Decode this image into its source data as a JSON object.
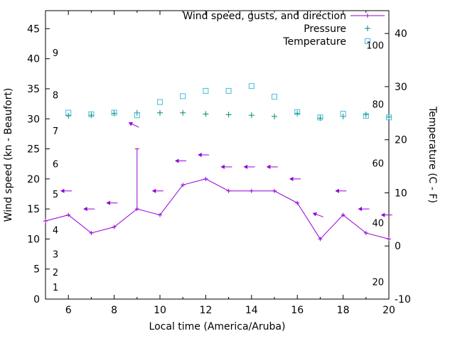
{
  "chart_data": {
    "type": "line",
    "title": "",
    "xlabel": "Local time (America/Aruba)",
    "ylabel_left": "Wind speed (kn - Beaufort)",
    "ylabel_right": "Temperature (C - F)",
    "xlim": [
      5,
      20
    ],
    "ylim_left": [
      0,
      48
    ],
    "ylim_right": [
      -10,
      44.3
    ],
    "x_ticks": [
      6,
      8,
      10,
      12,
      14,
      16,
      18,
      20
    ],
    "x_minor_ticks": [
      5,
      7,
      9,
      11,
      13,
      15,
      17,
      19
    ],
    "y_ticks_left": [
      0,
      5,
      10,
      15,
      20,
      25,
      30,
      35,
      40,
      45
    ],
    "y_ticks_right": [
      -10,
      0,
      10,
      20,
      30,
      40
    ],
    "beaufort_labels": [
      {
        "label": "1",
        "kn": 2
      },
      {
        "label": "2",
        "kn": 4.5
      },
      {
        "label": "3",
        "kn": 7.5
      },
      {
        "label": "4",
        "kn": 11.5
      },
      {
        "label": "5",
        "kn": 17.5
      },
      {
        "label": "6",
        "kn": 22.5
      },
      {
        "label": "7",
        "kn": 28
      },
      {
        "label": "8",
        "kn": 34
      },
      {
        "label": "9",
        "kn": 41
      }
    ],
    "fahrenheit_labels": [
      {
        "label": "20",
        "c": -6.7
      },
      {
        "label": "40",
        "c": 4.4
      },
      {
        "label": "60",
        "c": 15.6
      },
      {
        "label": "80",
        "c": 26.7
      },
      {
        "label": "100",
        "c": 37.8
      }
    ],
    "legend_position": "top-right",
    "series": [
      {
        "name": "Wind speed, gusts, and direction",
        "color": "#9400d3",
        "axis": "left",
        "type": "line+points+arrows",
        "x": [
          5,
          6,
          7,
          8,
          9,
          10,
          11,
          12,
          13,
          14,
          15,
          16,
          17,
          18,
          19,
          20
        ],
        "speed": [
          13,
          14,
          11,
          12,
          15,
          14,
          19,
          20,
          18,
          18,
          18,
          16,
          10,
          14,
          11,
          10
        ],
        "gust": [
          13,
          14,
          11,
          12,
          25,
          14,
          19,
          20,
          18,
          18,
          18,
          16,
          10,
          14,
          11,
          10
        ],
        "arrows": {
          "x": [
            5.9,
            6.9,
            7.9,
            8.85,
            9.9,
            10.9,
            11.9,
            12.9,
            13.9,
            14.9,
            15.9,
            16.9,
            17.9,
            18.9,
            19.9
          ],
          "y": [
            18,
            15,
            16,
            29,
            18,
            23,
            24,
            22,
            22,
            22,
            20,
            14,
            18,
            15,
            14
          ],
          "angle": [
            180,
            180,
            180,
            205,
            180,
            180,
            180,
            180,
            180,
            180,
            180,
            200,
            180,
            180,
            180
          ]
        }
      },
      {
        "name": "Pressure",
        "color": "#008878",
        "axis": "left",
        "type": "points",
        "marker": "plus",
        "x": [
          6,
          7,
          8,
          9,
          10,
          11,
          12,
          13,
          14,
          15,
          16,
          17,
          18,
          19,
          20
        ],
        "y": [
          30.5,
          30.6,
          30.9,
          31.0,
          31.0,
          31.0,
          30.8,
          30.7,
          30.6,
          30.4,
          30.9,
          30.1,
          30.4,
          30.7,
          30.3
        ]
      },
      {
        "name": "Temperature",
        "color": "#44bcd8",
        "axis": "right",
        "type": "points",
        "marker": "square",
        "x": [
          6,
          7,
          8,
          9,
          10,
          11,
          12,
          13,
          14,
          15,
          16,
          17,
          18,
          19,
          20
        ],
        "y": [
          25.1,
          24.8,
          25.1,
          24.6,
          27.1,
          28.2,
          29.2,
          29.2,
          30.1,
          28.1,
          25.2,
          24.2,
          24.9,
          24.5,
          24.2
        ]
      }
    ]
  }
}
